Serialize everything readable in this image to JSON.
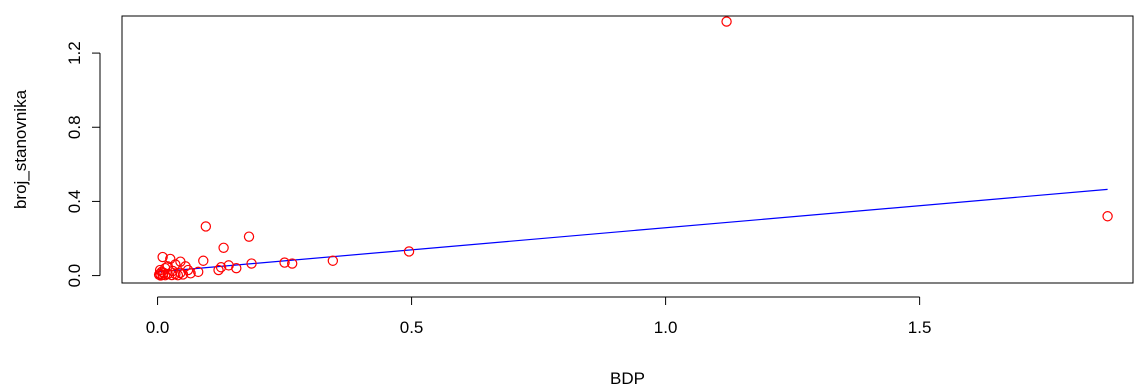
{
  "chart_data": {
    "type": "scatter",
    "title": "",
    "xlabel": "BDP",
    "ylabel": "broj_stanovnika",
    "xlim": [
      -0.07,
      1.92
    ],
    "ylim": [
      -0.04,
      1.4
    ],
    "x_ticks": [
      0.0,
      0.5,
      1.0,
      1.5
    ],
    "x_tick_labels": [
      "0.0",
      "0.5",
      "1.0",
      "1.5"
    ],
    "y_ticks": [
      0.0,
      0.4,
      0.8,
      1.2
    ],
    "y_tick_labels": [
      "0.0",
      "0.4",
      "0.8",
      "1.2"
    ],
    "grid": false,
    "legend": "none",
    "point_color": "#ff0000",
    "line_color": "#0000ff",
    "points": [
      {
        "x": 1.12,
        "y": 1.37
      },
      {
        "x": 1.87,
        "y": 0.32
      },
      {
        "x": 0.095,
        "y": 0.265
      },
      {
        "x": 0.18,
        "y": 0.21
      },
      {
        "x": 0.13,
        "y": 0.15
      },
      {
        "x": 0.495,
        "y": 0.13
      },
      {
        "x": 0.01,
        "y": 0.1
      },
      {
        "x": 0.025,
        "y": 0.09
      },
      {
        "x": 0.345,
        "y": 0.08
      },
      {
        "x": 0.09,
        "y": 0.08
      },
      {
        "x": 0.045,
        "y": 0.075
      },
      {
        "x": 0.035,
        "y": 0.06
      },
      {
        "x": 0.25,
        "y": 0.07
      },
      {
        "x": 0.265,
        "y": 0.065
      },
      {
        "x": 0.185,
        "y": 0.065
      },
      {
        "x": 0.14,
        "y": 0.055
      },
      {
        "x": 0.055,
        "y": 0.05
      },
      {
        "x": 0.125,
        "y": 0.045
      },
      {
        "x": 0.02,
        "y": 0.05
      },
      {
        "x": 0.015,
        "y": 0.04
      },
      {
        "x": 0.155,
        "y": 0.04
      },
      {
        "x": 0.06,
        "y": 0.03
      },
      {
        "x": 0.12,
        "y": 0.03
      },
      {
        "x": 0.005,
        "y": 0.03
      },
      {
        "x": 0.03,
        "y": 0.025
      },
      {
        "x": 0.08,
        "y": 0.02
      },
      {
        "x": 0.008,
        "y": 0.02
      },
      {
        "x": 0.045,
        "y": 0.015
      },
      {
        "x": 0.012,
        "y": 0.015
      },
      {
        "x": 0.065,
        "y": 0.012
      },
      {
        "x": 0.005,
        "y": 0.01
      },
      {
        "x": 0.02,
        "y": 0.008
      },
      {
        "x": 0.035,
        "y": 0.008
      },
      {
        "x": 0.003,
        "y": 0.005
      },
      {
        "x": 0.01,
        "y": 0.004
      },
      {
        "x": 0.028,
        "y": 0.003
      },
      {
        "x": 0.05,
        "y": 0.006
      },
      {
        "x": 0.015,
        "y": 0.002
      },
      {
        "x": 0.006,
        "y": 0.001
      },
      {
        "x": 0.04,
        "y": 0.002
      }
    ],
    "fit_line": {
      "x": [
        0.0,
        1.87
      ],
      "y": [
        0.02,
        0.465
      ]
    }
  }
}
